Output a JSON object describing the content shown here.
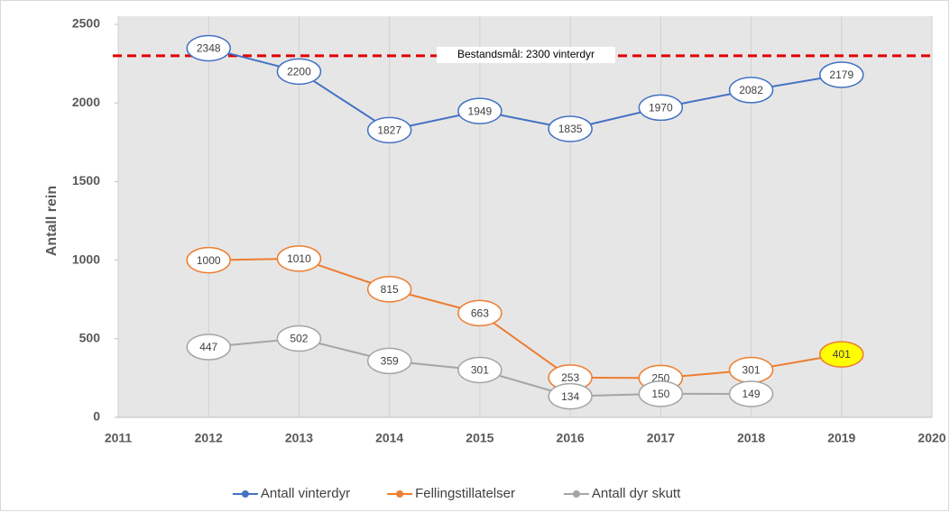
{
  "chart_data": {
    "type": "line",
    "y_label": "Antall rein",
    "x": [
      2012,
      2013,
      2014,
      2015,
      2016,
      2017,
      2018,
      2019
    ],
    "xlim": [
      2011,
      2020
    ],
    "xticks": [
      2011,
      2012,
      2013,
      2014,
      2015,
      2016,
      2017,
      2018,
      2019,
      2020
    ],
    "ylim": [
      0,
      2500
    ],
    "yticks": [
      0,
      500,
      1000,
      1500,
      2000,
      2500
    ],
    "grid": "x",
    "legend": "bottom",
    "series": [
      {
        "name": "Antall vinterdyr",
        "color": "#4472c4",
        "values": [
          2348,
          2200,
          1827,
          1949,
          1835,
          1970,
          2082,
          2179
        ]
      },
      {
        "name": "Fellingstillatelser",
        "color": "#ed7d31",
        "values": [
          1000,
          1010,
          815,
          663,
          253,
          250,
          301,
          401
        ]
      },
      {
        "name": "Antall dyr skutt",
        "color": "#a5a5a5",
        "values": [
          447,
          502,
          359,
          301,
          134,
          150,
          149,
          null
        ]
      }
    ],
    "highlight": {
      "series": 1,
      "index": 7,
      "color": "#ffff00"
    },
    "reference_line": {
      "value": 2300,
      "label": "Bestandsmål: 2300 vinterdyr",
      "color": "#e00000"
    }
  }
}
